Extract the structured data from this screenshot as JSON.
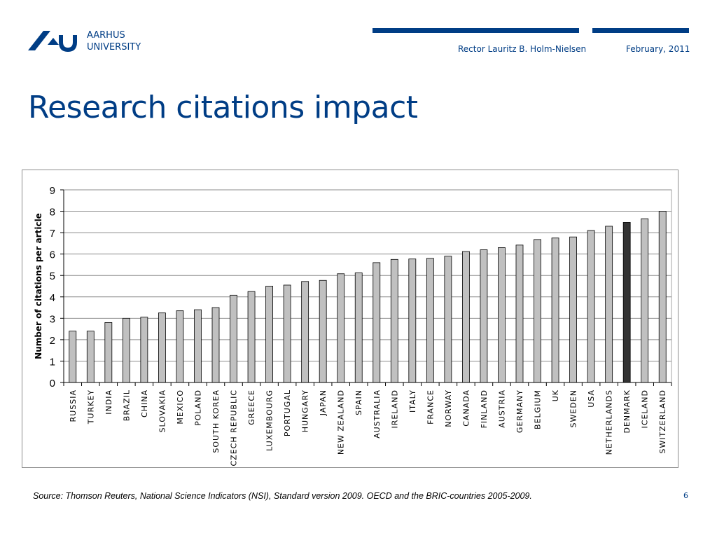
{
  "header": {
    "logo_line1": "AARHUS",
    "logo_line2": "UNIVERSITY",
    "presenter": "Rector Lauritz B. Holm-Nielsen",
    "date": "February, 2011",
    "brand_color": "#003d85"
  },
  "page_title": "Research citations impact",
  "footer": {
    "source": "Source: Thomson Reuters, National Science Indicators (NSI), Standard version 2009. OECD and the BRIC-countries 2005-2009.",
    "page_number": "6"
  },
  "chart_data": {
    "type": "bar",
    "title": "",
    "xlabel": "",
    "ylabel": "Number of citations per article",
    "ylim": [
      0,
      9
    ],
    "yticks": [
      0,
      1,
      2,
      3,
      4,
      5,
      6,
      7,
      8,
      9
    ],
    "grid": true,
    "categories": [
      "RUSSIA",
      "TURKEY",
      "INDIA",
      "BRAZIL",
      "CHINA",
      "SLOVAKIA",
      "MEXICO",
      "POLAND",
      "SOUTH KOREA",
      "CZECH REPUBLIC",
      "GREECE",
      "LUXEMBOURG",
      "PORTUGAL",
      "HUNGARY",
      "JAPAN",
      "NEW ZEALAND",
      "SPAIN",
      "AUSTRALIA",
      "IRELAND",
      "ITALY",
      "FRANCE",
      "NORWAY",
      "CANADA",
      "FINLAND",
      "AUSTRIA",
      "GERMANY",
      "BELGIUM",
      "UK",
      "SWEDEN",
      "USA",
      "NETHERLANDS",
      "DENMARK",
      "ICELAND",
      "SWITZERLAND"
    ],
    "values": [
      2.4,
      2.4,
      2.8,
      3.0,
      3.05,
      3.25,
      3.35,
      3.4,
      3.5,
      4.08,
      4.25,
      4.5,
      4.55,
      4.72,
      4.77,
      5.08,
      5.12,
      5.6,
      5.75,
      5.77,
      5.8,
      5.9,
      6.12,
      6.2,
      6.3,
      6.42,
      6.68,
      6.75,
      6.8,
      7.1,
      7.3,
      7.48,
      7.65,
      8.0
    ],
    "highlight": "DENMARK",
    "bar_color": "#c0c0c0",
    "highlight_color": "#333333"
  }
}
